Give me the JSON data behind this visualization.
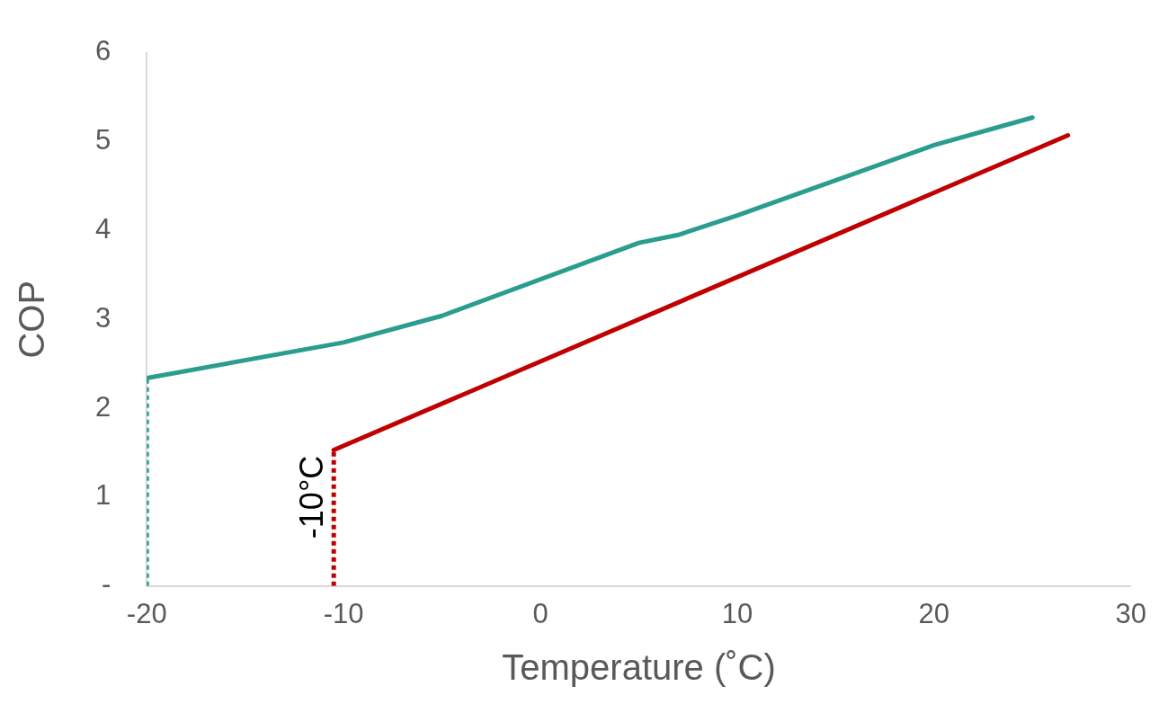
{
  "chart_data": {
    "type": "line",
    "xlabel": "Temperature (˚C)",
    "ylabel": "COP",
    "xlim": [
      -20,
      30
    ],
    "xticks": [
      -20,
      -10,
      0,
      10,
      20,
      30
    ],
    "ylim": [
      0,
      6
    ],
    "yticks": [
      {
        "value": 0,
        "label": "-"
      },
      1,
      2,
      3,
      4,
      5,
      6
    ],
    "grid": false,
    "legend": false,
    "marker": "none",
    "series": [
      {
        "color": "#2a9d8f",
        "line_style": "solid",
        "x": [
          -20,
          -10,
          -5,
          5,
          7,
          10,
          20,
          25
        ],
        "values": [
          2.34,
          2.74,
          3.04,
          3.86,
          3.95,
          4.17,
          4.96,
          5.27
        ]
      },
      {
        "color": "#c00000",
        "line_style": "solid",
        "x": [
          -10.5,
          26.8
        ],
        "values": [
          1.53,
          5.07
        ]
      },
      {
        "color": "#2a9d8f",
        "line_style": "dotted",
        "x": [
          -20,
          -20
        ],
        "values": [
          0,
          2.34
        ]
      },
      {
        "color": "#c00000",
        "line_style": "dotted",
        "x": [
          -10.5,
          -10.5
        ],
        "values": [
          0,
          1.53
        ]
      }
    ],
    "annotations": [
      {
        "text": "-10°C",
        "x": -10.5,
        "y": 1.0
      }
    ]
  }
}
